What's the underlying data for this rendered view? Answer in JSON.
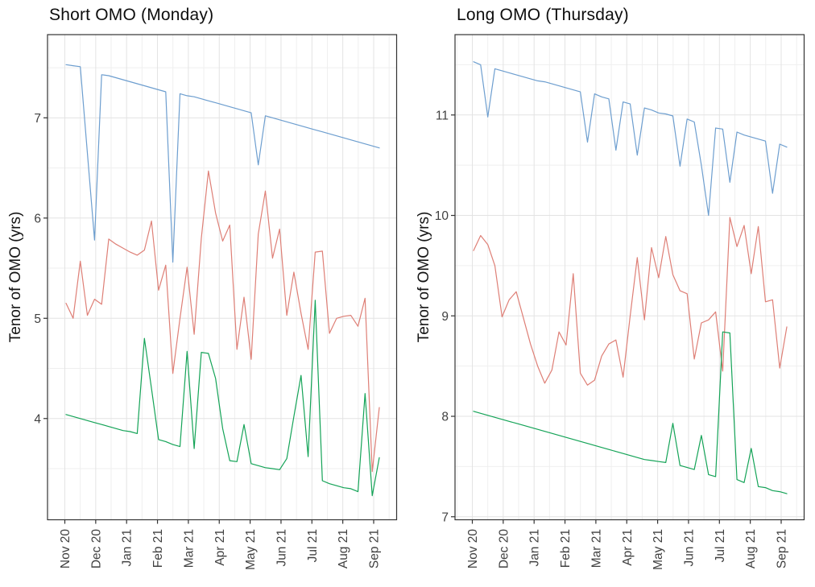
{
  "chart_data": [
    {
      "type": "line",
      "title": "Short OMO (Monday)",
      "ylabel": "Tenor of OMO (yrs)",
      "xlabel": "",
      "x_tick_labels": [
        "Nov 20",
        "Dec 20",
        "Jan 21",
        "Feb 21",
        "Mar 21",
        "Apr 21",
        "May 21",
        "Jun 21",
        "Jul 21",
        "Aug 21",
        "Sep 21"
      ],
      "y_ticks": [
        4,
        5,
        6,
        7
      ],
      "ylim": [
        2.99,
        7.83
      ],
      "grid": "major and minor, light gray",
      "legend": "none",
      "x_frequency": "weekly",
      "series": [
        {
          "name": "blue",
          "color": "#6d9ecf",
          "values": [
            7.53,
            7.52,
            7.51,
            6.65,
            5.78,
            7.43,
            7.42,
            7.4,
            7.38,
            7.36,
            7.34,
            7.32,
            7.3,
            7.28,
            7.26,
            5.56,
            7.24,
            7.22,
            7.21,
            7.19,
            7.17,
            7.15,
            7.13,
            7.11,
            7.09,
            7.07,
            7.05,
            6.53,
            7.02,
            7.0,
            6.98,
            6.96,
            6.94,
            6.92,
            6.9,
            6.88,
            6.86,
            6.84,
            6.82,
            6.8,
            6.78,
            6.76,
            6.74,
            6.72,
            6.7
          ]
        },
        {
          "name": "red",
          "color": "#de7f76",
          "values": [
            5.15,
            5.0,
            5.57,
            5.03,
            5.19,
            5.14,
            5.79,
            5.74,
            5.7,
            5.66,
            5.63,
            5.68,
            5.97,
            5.28,
            5.53,
            4.45,
            5.0,
            5.51,
            4.84,
            5.8,
            6.47,
            6.05,
            5.77,
            5.93,
            4.69,
            5.21,
            4.59,
            5.84,
            6.27,
            5.6,
            5.89,
            5.03,
            5.46,
            5.05,
            4.69,
            5.66,
            5.67,
            4.85,
            5.0,
            5.02,
            5.03,
            4.92,
            5.2,
            3.47,
            4.11
          ]
        },
        {
          "name": "green",
          "color": "#14a357",
          "values": [
            4.04,
            4.02,
            4.0,
            3.98,
            3.96,
            3.94,
            3.92,
            3.9,
            3.88,
            3.87,
            3.85,
            4.8,
            4.3,
            3.79,
            3.77,
            3.74,
            3.72,
            4.67,
            3.7,
            4.66,
            4.65,
            4.4,
            3.9,
            3.58,
            3.57,
            3.94,
            3.55,
            3.53,
            3.51,
            3.5,
            3.49,
            3.6,
            4.02,
            4.43,
            3.62,
            5.18,
            3.38,
            3.35,
            3.33,
            3.31,
            3.3,
            3.27,
            4.25,
            3.23,
            3.61
          ]
        }
      ]
    },
    {
      "type": "line",
      "title": "Long OMO (Thursday)",
      "ylabel": "Tenor of OMO (yrs)",
      "xlabel": "",
      "x_tick_labels": [
        "Nov 20",
        "Dec 20",
        "Jan 21",
        "Feb 21",
        "Mar 21",
        "Apr 21",
        "May 21",
        "Jun 21",
        "Jul 21",
        "Aug 21",
        "Sep 21"
      ],
      "y_ticks": [
        7,
        8,
        9,
        10,
        11
      ],
      "ylim": [
        6.97,
        11.8
      ],
      "grid": "major and minor, light gray",
      "legend": "none",
      "x_frequency": "weekly",
      "series": [
        {
          "name": "blue",
          "color": "#6d9ecf",
          "values": [
            11.53,
            11.5,
            10.98,
            11.46,
            11.44,
            11.42,
            11.4,
            11.38,
            11.36,
            11.34,
            11.33,
            11.31,
            11.29,
            11.27,
            11.25,
            11.23,
            10.73,
            11.21,
            11.18,
            11.16,
            10.65,
            11.13,
            11.11,
            10.6,
            11.07,
            11.05,
            11.02,
            11.01,
            10.99,
            10.49,
            10.96,
            10.93,
            10.5,
            10.0,
            10.87,
            10.86,
            10.33,
            10.83,
            10.8,
            10.78,
            10.76,
            10.74,
            10.22,
            10.71,
            10.68
          ]
        },
        {
          "name": "red",
          "color": "#de7f76",
          "values": [
            9.65,
            9.8,
            9.71,
            9.5,
            8.99,
            9.16,
            9.24,
            8.98,
            8.72,
            8.5,
            8.33,
            8.46,
            8.84,
            8.71,
            9.42,
            8.43,
            8.31,
            8.36,
            8.6,
            8.72,
            8.76,
            8.39,
            9.0,
            9.58,
            8.96,
            9.68,
            9.38,
            9.79,
            9.41,
            9.25,
            9.22,
            8.57,
            8.93,
            8.96,
            9.04,
            8.45,
            9.98,
            9.69,
            9.9,
            9.42,
            9.89,
            9.14,
            9.16,
            8.48,
            8.89
          ]
        },
        {
          "name": "green",
          "color": "#14a357",
          "values": [
            8.05,
            8.03,
            8.01,
            7.99,
            7.97,
            7.95,
            7.93,
            7.91,
            7.89,
            7.87,
            7.85,
            7.83,
            7.81,
            7.79,
            7.77,
            7.75,
            7.73,
            7.71,
            7.69,
            7.67,
            7.65,
            7.63,
            7.61,
            7.59,
            7.57,
            7.56,
            7.55,
            7.54,
            7.93,
            7.51,
            7.49,
            7.47,
            7.81,
            7.42,
            7.4,
            8.84,
            8.83,
            7.37,
            7.34,
            7.68,
            7.3,
            7.29,
            7.26,
            7.25,
            7.23
          ]
        }
      ]
    }
  ],
  "style": {
    "panel_border_color": "#333333",
    "major_grid_color": "#e3e3e3",
    "minor_grid_color": "#efefef",
    "tick_color": "#333333",
    "tick_label_color": "#404040"
  }
}
